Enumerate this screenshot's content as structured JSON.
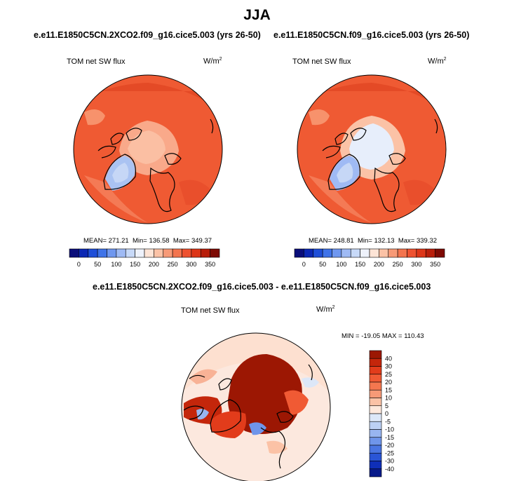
{
  "title": "JJA",
  "panels": [
    {
      "case": "e.e11.E1850C5CN.2XCO2.f09_g16.cice5.003 (yrs 26-50)",
      "variable": "TOM net SW flux",
      "units": "W/m",
      "units_exp": "2",
      "stats": {
        "mean": "MEAN= 271.21",
        "min": "Min= 136.58",
        "max": "Max= 349.37"
      },
      "mean_value": 271.21,
      "min_value": 136.58,
      "max_value": 349.37
    },
    {
      "case": "e.e11.E1850C5CN.f09_g16.cice5.003 (yrs 26-50)",
      "variable": "TOM net SW flux",
      "units": "W/m",
      "units_exp": "2",
      "stats": {
        "mean": "MEAN= 248.81",
        "min": "Min= 132.13",
        "max": "Max= 339.32"
      },
      "mean_value": 248.81,
      "min_value": 132.13,
      "max_value": 339.32
    }
  ],
  "diff_panel": {
    "title": "e.e11.E1850C5CN.2XCO2.f09_g16.cice5.003 - e.e11.E1850C5CN.f09_g16.cice5.003",
    "variable": "TOM net SW flux",
    "units": "W/m",
    "units_exp": "2",
    "minmax": "MIN = -19.05 MAX = 110.43",
    "min_value": -19.05,
    "max_value": 110.43
  },
  "chart_data": {
    "type": "heatmap",
    "projection": "north polar stereographic",
    "abs_colorbar": {
      "orientation": "horizontal",
      "tick_labels": [
        "0",
        "50",
        "100",
        "150",
        "200",
        "250",
        "300",
        "350"
      ],
      "ticks": [
        0,
        50,
        100,
        150,
        200,
        250,
        300,
        350
      ],
      "bin_colors": [
        "#0a0e7a",
        "#0c28b4",
        "#1f4fd8",
        "#3f73e8",
        "#6f97ef",
        "#9fbaf4",
        "#c7d9f8",
        "#eef2fb",
        "#fde4d6",
        "#fbc2a6",
        "#f79a77",
        "#f3744e",
        "#ee5230",
        "#dd3618",
        "#b81e0a",
        "#7d0a03"
      ]
    },
    "diff_colorbar": {
      "orientation": "vertical",
      "tick_labels": [
        "40",
        "30",
        "25",
        "20",
        "15",
        "10",
        "5",
        "0",
        "-5",
        "-10",
        "-15",
        "-20",
        "-25",
        "-30",
        "-40"
      ],
      "ticks": [
        40,
        30,
        25,
        20,
        15,
        10,
        5,
        0,
        -5,
        -10,
        -15,
        -20,
        -25,
        -30,
        -40
      ],
      "bin_colors": [
        "#9c1703",
        "#c4260b",
        "#e23c1b",
        "#f05a34",
        "#f4774f",
        "#f79a77",
        "#fbc2a6",
        "#fde8dc",
        "#dce7f8",
        "#bcd0f4",
        "#98b5f0",
        "#6f95ea",
        "#4a75e2",
        "#2a55d6",
        "#0f2fb8",
        "#081a8a"
      ]
    }
  }
}
